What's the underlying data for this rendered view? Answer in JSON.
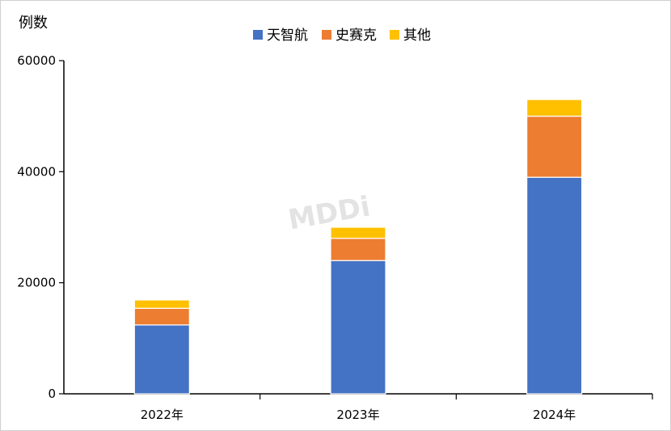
{
  "chart_data": {
    "type": "bar",
    "stacked": true,
    "ylabel": "例数",
    "categories": [
      "2022年",
      "2023年",
      "2024年"
    ],
    "series": [
      {
        "name": "天智航",
        "color": "#4472C4",
        "values": [
          12400,
          24000,
          39000
        ]
      },
      {
        "name": "史赛克",
        "color": "#ED7D31",
        "values": [
          3000,
          4000,
          11000
        ]
      },
      {
        "name": "其他",
        "color": "#FFC000",
        "values": [
          1500,
          2000,
          3000
        ]
      }
    ],
    "ylim": [
      0,
      60000
    ],
    "yticks": [
      0,
      20000,
      40000,
      60000
    ],
    "legend_position": "top",
    "grid": false
  },
  "watermark": "MDDi"
}
